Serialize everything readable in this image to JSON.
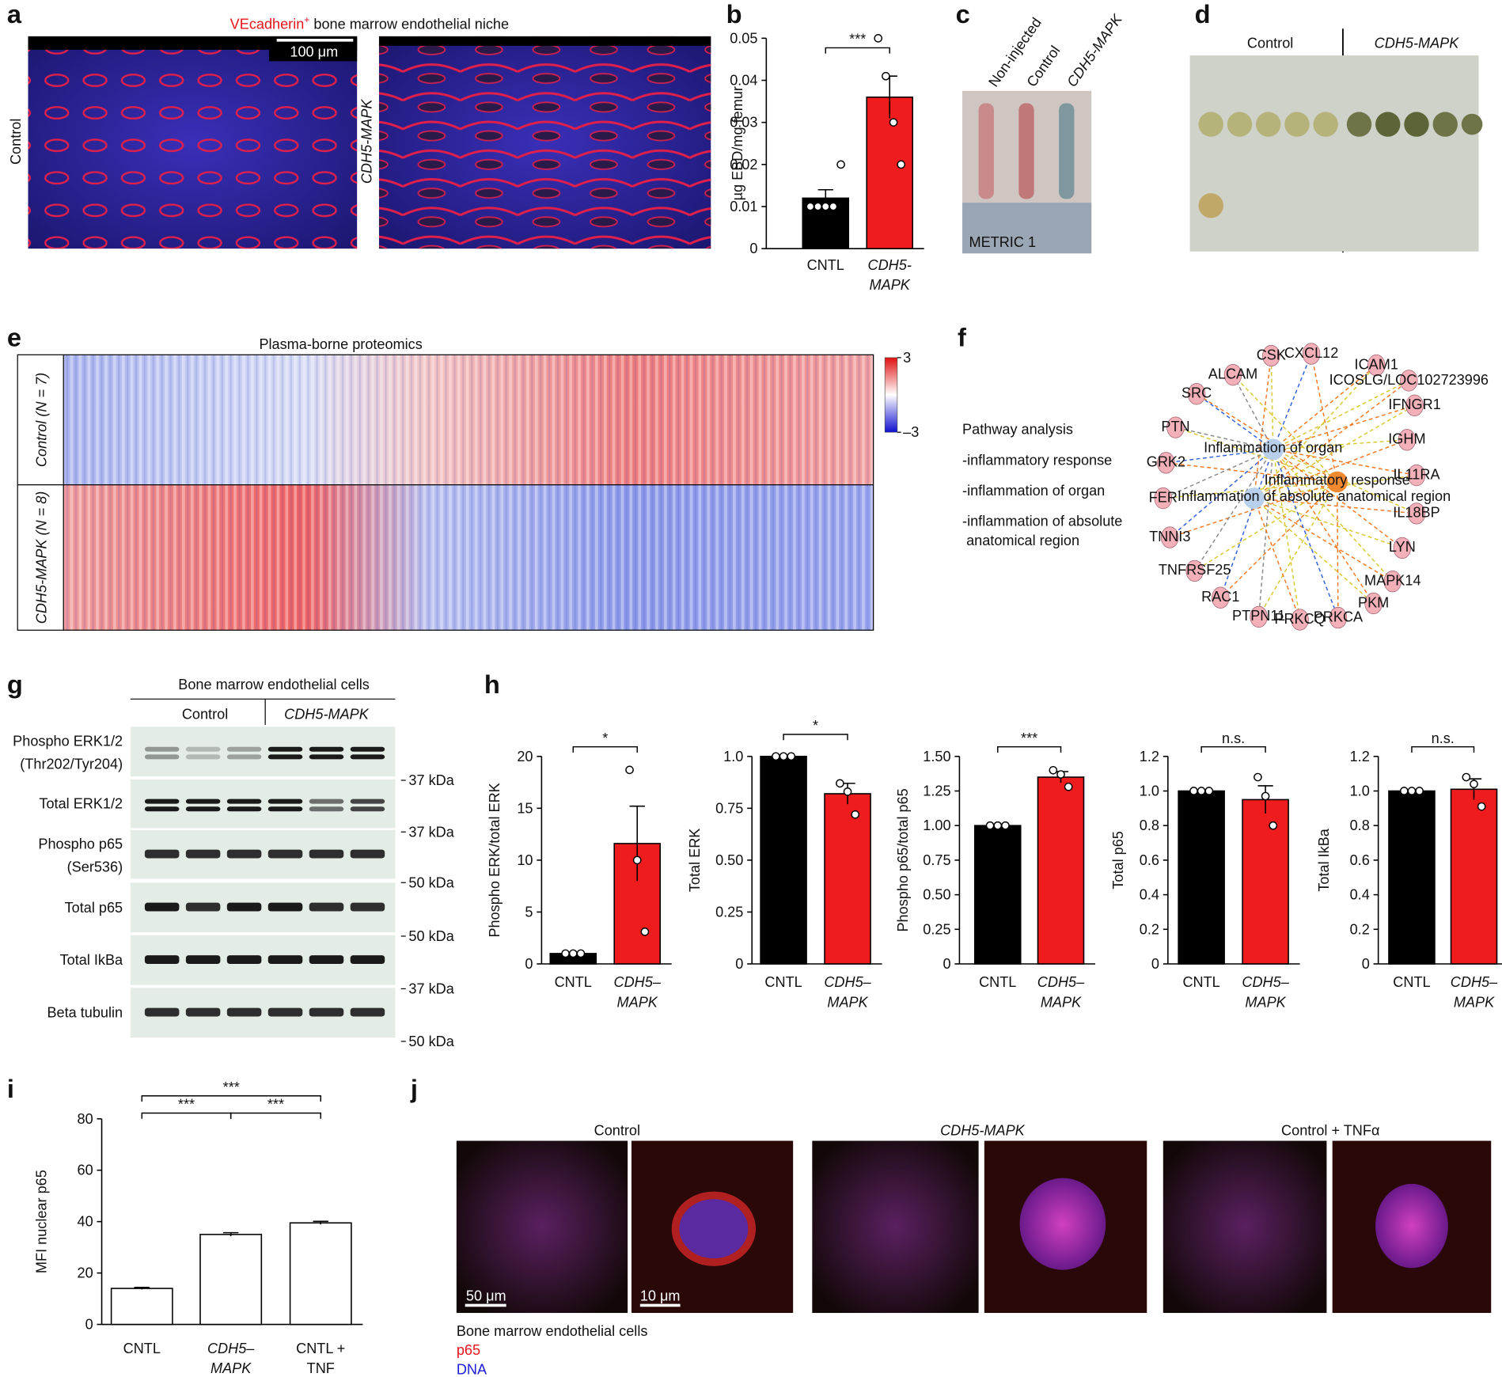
{
  "panel_labels": [
    "a",
    "b",
    "c",
    "d",
    "e",
    "f",
    "g",
    "h",
    "i",
    "j"
  ],
  "panel_a": {
    "title_marker": "VEcadherin",
    "title_sup": "+",
    "title_rest": " bone marrow endothelial niche",
    "scale_bar": "100 μm",
    "row_labels": [
      "Control",
      "CDH5-MAPK"
    ]
  },
  "panel_c": {
    "labels": [
      "Non-injected",
      "Control",
      "CDH5-MAPK"
    ],
    "ruler": "METRIC 1"
  },
  "panel_d": {
    "headers": [
      "Control",
      "CDH5-MAPK"
    ]
  },
  "panel_e": {
    "title": "Plasma-borne proteomics",
    "row_labels": [
      "Control (N = 7)",
      "CDH5-MAPK (N = 8)"
    ],
    "colorbar_ticks": [
      {
        "value": 3,
        "label": "3"
      },
      {
        "value": -3,
        "label": "–3"
      }
    ]
  },
  "panel_f": {
    "heading": "Pathway analysis",
    "items": [
      "-inflammatory response",
      "-inflammation of organ",
      "-inflammation of absolute",
      " anatomical region"
    ],
    "hubs": [
      "Inflammation of organ",
      "Inflammatory response",
      "Inflammation of absolute anatomical region"
    ],
    "nodes": [
      "CSK",
      "CXCL12",
      "ICAM1",
      "ALCAM",
      "ICOSLG/LOC102723996",
      "SRC",
      "IFNGR1",
      "PTN",
      "IGHM",
      "GRK2",
      "IL11RA",
      "FER",
      "IL18BP",
      "TNNI3",
      "LYN",
      "TNFRSF25",
      "MAPK14",
      "RAC1",
      "PKM",
      "PTPN11",
      "PRKCQ",
      "PRKCA"
    ]
  },
  "panel_g": {
    "title": "Bone marrow endothelial cells",
    "groups": [
      "Control",
      "CDH5-MAPK"
    ],
    "rows": [
      [
        "Phospho ERK1/2",
        "(Thr202/Tyr204)"
      ],
      [
        "Total ERK1/2"
      ],
      [
        "Phospho p65",
        "(Ser536)"
      ],
      [
        "Total p65"
      ],
      [
        "Total IkBa"
      ],
      [
        "Beta tubulin"
      ]
    ],
    "markers": [
      "37 kDa",
      "37 kDa",
      "50 kDa",
      "50 kDa",
      "37 kDa",
      "50 kDa"
    ]
  },
  "panel_j": {
    "headers": [
      "Control",
      "CDH5-MAPK",
      "Control + TNFα"
    ],
    "scale_bars": [
      "50 μm",
      "10 μm"
    ],
    "legend": [
      "Bone marrow endothelial cells",
      "p65",
      "DNA"
    ]
  },
  "chart_data": [
    {
      "type": "bar",
      "y_label": "µg EBD/mg femur",
      "categories": [
        [
          "CNTL"
        ],
        [
          "CDH5-",
          "MAPK"
        ]
      ],
      "values": [
        0.012,
        0.036
      ],
      "errors": [
        0.002,
        0.005
      ],
      "points": [
        [
          0.01,
          0.01,
          0.01,
          0.01,
          0.02
        ],
        [
          0.05,
          0.041,
          0.03,
          0.02
        ]
      ],
      "colors": [
        "#000000",
        "#ee1c1c"
      ],
      "edgecolor": "#000000",
      "ylim": [
        0,
        0.05
      ],
      "yticks": [
        0,
        0.01,
        0.02,
        0.03,
        0.04,
        0.05
      ],
      "significance": [
        "***"
      ]
    },
    {
      "type": "bar",
      "y_label": "Phospho ERK/total ERK",
      "categories": [
        [
          "CNTL"
        ],
        [
          "CDH5–",
          "MAPK"
        ]
      ],
      "values": [
        1,
        11.6
      ],
      "errors": [
        0.1,
        3.6
      ],
      "points": [
        [
          1,
          1,
          1
        ],
        [
          18.7,
          10,
          3.1
        ]
      ],
      "colors": [
        "#000000",
        "#ee1c1c"
      ],
      "edgecolor": "#000000",
      "ylim": [
        0,
        20
      ],
      "yticks": [
        0,
        5,
        10,
        15,
        20
      ],
      "significance": [
        "*"
      ]
    },
    {
      "type": "bar",
      "y_label": "Total ERK",
      "categories": [
        [
          "CNTL"
        ],
        [
          "CDH5–",
          "MAPK"
        ]
      ],
      "values": [
        1,
        0.82
      ],
      "errors": [
        0,
        0.05
      ],
      "points": [
        [
          1,
          1,
          1
        ],
        [
          0.87,
          0.83,
          0.72
        ]
      ],
      "colors": [
        "#000000",
        "#ee1c1c"
      ],
      "edgecolor": "#000000",
      "ylim": [
        0,
        1
      ],
      "yticks": [
        0,
        0.25,
        {
          "value": 0.5,
          "label": "0.50"
        },
        0.75,
        {
          "value": 1,
          "label": "1.0"
        }
      ],
      "significance": [
        "*"
      ]
    },
    {
      "type": "bar",
      "y_label": "Phospho p65/total p65",
      "categories": [
        [
          "CNTL"
        ],
        [
          "CDH5–",
          "MAPK"
        ]
      ],
      "values": [
        1,
        1.35
      ],
      "errors": [
        0,
        0.04
      ],
      "points": [
        [
          1,
          1,
          1
        ],
        [
          1.4,
          1.37,
          1.28
        ]
      ],
      "colors": [
        "#000000",
        "#ee1c1c"
      ],
      "edgecolor": "#000000",
      "ylim": [
        0,
        1.5
      ],
      "yticks": [
        0,
        0.25,
        {
          "value": 0.5,
          "label": "0.50"
        },
        0.75,
        {
          "value": 1,
          "label": "1.00"
        },
        1.25,
        {
          "value": 1.5,
          "label": "1.50"
        }
      ],
      "significance": [
        "***"
      ]
    },
    {
      "type": "bar",
      "y_label": "Total p65",
      "categories": [
        [
          "CNTL"
        ],
        [
          "CDH5–",
          "MAPK"
        ]
      ],
      "values": [
        1,
        0.95
      ],
      "errors": [
        0,
        0.08
      ],
      "points": [
        [
          1,
          1,
          1
        ],
        [
          1.08,
          0.97,
          0.8
        ]
      ],
      "colors": [
        "#000000",
        "#ee1c1c"
      ],
      "edgecolor": "#000000",
      "ylim": [
        0,
        1.2
      ],
      "yticks": [
        0,
        0.2,
        0.4,
        0.6,
        0.8,
        {
          "value": 1,
          "label": "1.0"
        },
        1.2
      ],
      "significance": [
        "n.s."
      ]
    },
    {
      "type": "bar",
      "y_label": "Total IkBa",
      "categories": [
        [
          "CNTL"
        ],
        [
          "CDH5–",
          "MAPK"
        ]
      ],
      "values": [
        1,
        1.01
      ],
      "errors": [
        0,
        0.06
      ],
      "points": [
        [
          1,
          1,
          1
        ],
        [
          1.08,
          1.04,
          0.91
        ]
      ],
      "colors": [
        "#000000",
        "#ee1c1c"
      ],
      "edgecolor": "#000000",
      "ylim": [
        0,
        1.2
      ],
      "yticks": [
        0,
        0.2,
        0.4,
        0.6,
        0.8,
        {
          "value": 1,
          "label": "1.0"
        },
        1.2
      ],
      "significance": [
        "n.s."
      ]
    },
    {
      "type": "bar",
      "y_label": "MFI nuclear p65",
      "categories": [
        [
          "CNTL"
        ],
        [
          "CDH5–",
          "MAPK"
        ],
        [
          "CNTL +",
          "TNF"
        ]
      ],
      "values": [
        14,
        35,
        39.5
      ],
      "errors": [
        0.4,
        0.7,
        0.6
      ],
      "points": [
        [],
        [],
        []
      ],
      "colors": [
        "#ffffff",
        "#ffffff",
        "#ffffff"
      ],
      "edgecolor": "#000000",
      "ylim": [
        0,
        80
      ],
      "yticks": [
        0,
        20,
        40,
        60,
        80
      ],
      "significance": [
        "***",
        "***",
        "***"
      ]
    }
  ]
}
